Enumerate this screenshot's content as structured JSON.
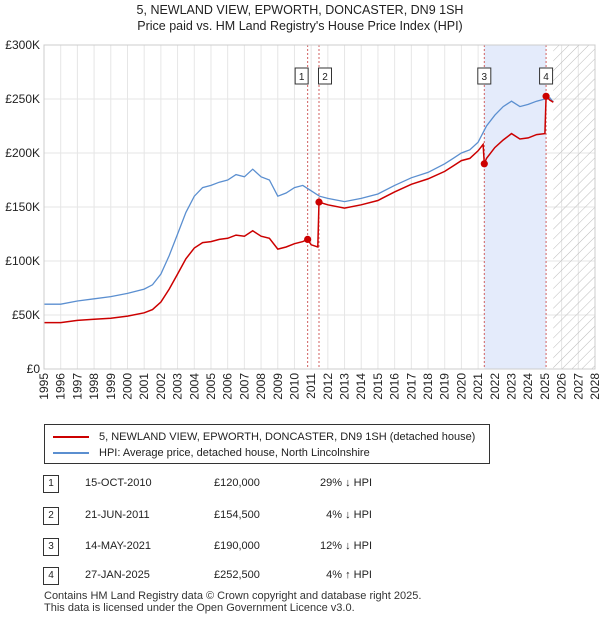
{
  "title": {
    "line1": "5, NEWLAND VIEW, EPWORTH, DONCASTER, DN9 1SH",
    "line2": "Price paid vs. HM Land Registry's House Price Index (HPI)"
  },
  "colors": {
    "property": "#cc0000",
    "hpi": "#5b8fd0",
    "marker_line": "#d06060",
    "shade": "#e4ebfb"
  },
  "legend": {
    "property": "5, NEWLAND VIEW, EPWORTH, DONCASTER, DN9 1SH (detached house)",
    "hpi": "HPI: Average price, detached house, North Lincolnshire"
  },
  "sales": [
    {
      "num": "1",
      "date": "15-OCT-2010",
      "price": "£120,000",
      "hpi": "29% ↓ HPI"
    },
    {
      "num": "2",
      "date": "21-JUN-2011",
      "price": "£154,500",
      "hpi": "4% ↓ HPI"
    },
    {
      "num": "3",
      "date": "14-MAY-2021",
      "price": "£190,000",
      "hpi": "12% ↓ HPI"
    },
    {
      "num": "4",
      "date": "27-JAN-2025",
      "price": "£252,500",
      "hpi": "4% ↑ HPI"
    }
  ],
  "footer": {
    "line1": "Contains HM Land Registry data © Crown copyright and database right 2025.",
    "line2": "This data is licensed under the Open Government Licence v3.0."
  },
  "chart_data": {
    "type": "line",
    "title": "Price paid vs. HM Land Registry's House Price Index (HPI)",
    "xlim": [
      1995,
      2028
    ],
    "ylim": [
      0,
      300000
    ],
    "x_ticks": [
      1995,
      1996,
      1997,
      1998,
      1999,
      2000,
      2001,
      2002,
      2003,
      2004,
      2005,
      2006,
      2007,
      2008,
      2009,
      2010,
      2011,
      2012,
      2013,
      2014,
      2015,
      2016,
      2017,
      2018,
      2019,
      2020,
      2021,
      2022,
      2023,
      2024,
      2025,
      2026,
      2027,
      2028
    ],
    "y_ticks": [
      {
        "value": 0,
        "label": "£0"
      },
      {
        "value": 50000,
        "label": "£50K"
      },
      {
        "value": 100000,
        "label": "£100K"
      },
      {
        "value": 150000,
        "label": "£150K"
      },
      {
        "value": 200000,
        "label": "£200K"
      },
      {
        "value": 250000,
        "label": "£250K"
      },
      {
        "value": 300000,
        "label": "£300K"
      }
    ],
    "shaded_range": [
      2021.37,
      2025.07
    ],
    "future_hatch_from": 2025.5,
    "markers": [
      {
        "num": "1",
        "x": 2010.79,
        "y": 120000
      },
      {
        "num": "2",
        "x": 2011.47,
        "y": 154500
      },
      {
        "num": "3",
        "x": 2021.37,
        "y": 190000
      },
      {
        "num": "4",
        "x": 2025.07,
        "y": 252500
      }
    ],
    "series": [
      {
        "name": "HPI: Average price, detached house, North Lincolnshire",
        "x": [
          1995.0,
          1996.0,
          1997.0,
          1998.0,
          1999.0,
          2000.0,
          2001.0,
          2001.5,
          2002.0,
          2002.5,
          2003.0,
          2003.5,
          2004.0,
          2004.5,
          2005.0,
          2005.5,
          2006.0,
          2006.5,
          2007.0,
          2007.5,
          2008.0,
          2008.5,
          2009.0,
          2009.5,
          2010.0,
          2010.5,
          2011.0,
          2011.5,
          2012.0,
          2013.0,
          2014.0,
          2015.0,
          2016.0,
          2017.0,
          2018.0,
          2019.0,
          2019.5,
          2020.0,
          2020.5,
          2021.0,
          2021.5,
          2022.0,
          2022.5,
          2023.0,
          2023.5,
          2024.0,
          2024.5,
          2025.0,
          2025.3,
          2025.5
        ],
        "values": [
          60000,
          60000,
          63000,
          65000,
          67000,
          70000,
          74000,
          78000,
          88000,
          105000,
          125000,
          145000,
          160000,
          168000,
          170000,
          173000,
          175000,
          180000,
          178000,
          185000,
          178000,
          175000,
          160000,
          163000,
          168000,
          170000,
          165000,
          160000,
          158000,
          155000,
          158000,
          162000,
          170000,
          177000,
          182000,
          190000,
          195000,
          200000,
          203000,
          210000,
          225000,
          235000,
          243000,
          248000,
          243000,
          245000,
          248000,
          250000,
          251000,
          247000
        ]
      },
      {
        "name": "5, NEWLAND VIEW, EPWORTH, DONCASTER, DN9 1SH (detached house)",
        "x": [
          1995.0,
          1996.0,
          1997.0,
          1998.0,
          1999.0,
          2000.0,
          2001.0,
          2001.5,
          2002.0,
          2002.5,
          2003.0,
          2003.5,
          2004.0,
          2004.5,
          2005.0,
          2005.5,
          2006.0,
          2006.5,
          2007.0,
          2007.5,
          2008.0,
          2008.5,
          2009.0,
          2009.5,
          2010.0,
          2010.5,
          2010.79,
          2011.0,
          2011.4,
          2011.47,
          2012.0,
          2013.0,
          2014.0,
          2015.0,
          2016.0,
          2017.0,
          2018.0,
          2019.0,
          2019.5,
          2020.0,
          2020.5,
          2021.0,
          2021.3,
          2021.37,
          2021.5,
          2022.0,
          2022.5,
          2023.0,
          2023.5,
          2024.0,
          2024.5,
          2025.0,
          2025.07,
          2025.3,
          2025.5
        ],
        "values": [
          43000,
          43000,
          45000,
          46000,
          47000,
          49000,
          52000,
          55000,
          62000,
          74000,
          88000,
          102000,
          112000,
          117000,
          118000,
          120000,
          121000,
          124000,
          123000,
          128000,
          123000,
          121000,
          111000,
          113000,
          116000,
          118000,
          120000,
          115000,
          113000,
          154500,
          152000,
          149000,
          152000,
          156000,
          164000,
          171000,
          176000,
          183000,
          188000,
          193000,
          195000,
          202000,
          208000,
          190000,
          195000,
          205000,
          212000,
          218000,
          213000,
          214000,
          217000,
          218000,
          252500,
          249000,
          247000
        ]
      }
    ]
  }
}
